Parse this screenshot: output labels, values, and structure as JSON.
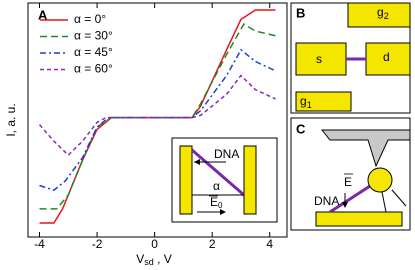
{
  "chart_data": {
    "type": "line",
    "panel_label": "A",
    "x_label": {
      "main": "V",
      "sub": "sd",
      "unit": " , V"
    },
    "y_label": "I, a. u.",
    "xlim": [
      -4.4,
      4.6
    ],
    "ylim": [
      0,
      1
    ],
    "xticks": [
      -4,
      -2,
      0,
      2,
      4
    ],
    "legend": "upper left",
    "series": [
      {
        "name": "α =   0°",
        "color": "#e8141c",
        "dash": "",
        "x": [
          -4.0,
          -3.5,
          -3.2,
          -2.5,
          -2.0,
          -1.5,
          1.3,
          1.6,
          2.5,
          3.0,
          3.5,
          4.2
        ],
        "values": [
          0.06,
          0.06,
          0.12,
          0.33,
          0.46,
          0.51,
          0.51,
          0.56,
          0.8,
          0.93,
          0.97,
          0.97
        ]
      },
      {
        "name": "α = 30°",
        "color": "#1a8a2a",
        "dash": "7 4",
        "x": [
          -4.0,
          -3.4,
          -3.0,
          -2.5,
          -2.0,
          -1.5,
          1.3,
          1.6,
          2.5,
          3.1,
          3.5,
          4.2
        ],
        "values": [
          0.12,
          0.12,
          0.18,
          0.33,
          0.47,
          0.51,
          0.51,
          0.57,
          0.78,
          0.91,
          0.88,
          0.86
        ]
      },
      {
        "name": "α = 45°",
        "color": "#1f3fd0",
        "dash": "6 3 2 3",
        "x": [
          -4.0,
          -3.5,
          -3.1,
          -2.5,
          -2.0,
          -1.6,
          1.3,
          1.6,
          2.5,
          3.0,
          3.5,
          4.2
        ],
        "values": [
          0.22,
          0.2,
          0.24,
          0.34,
          0.47,
          0.51,
          0.51,
          0.54,
          0.69,
          0.8,
          0.75,
          0.71
        ]
      },
      {
        "name": "α = 60°",
        "color": "#8a2ab8",
        "dash": "4 3",
        "x": [
          -4.0,
          -3.5,
          -3.0,
          -2.5,
          -2.0,
          -1.7,
          1.3,
          1.6,
          2.5,
          3.0,
          3.5,
          4.2
        ],
        "values": [
          0.48,
          0.41,
          0.35,
          0.41,
          0.49,
          0.51,
          0.51,
          0.52,
          0.61,
          0.69,
          0.63,
          0.59
        ]
      }
    ]
  },
  "inset": {
    "dna": "DNA",
    "alpha": "α",
    "field": "E",
    "field_sub": "0"
  },
  "panel_b": {
    "label": "B",
    "source": "s",
    "drain": "d",
    "gate1": {
      "main": "g",
      "sub": "1"
    },
    "gate2": {
      "main": "g",
      "sub": "2"
    }
  },
  "panel_c": {
    "label": "C",
    "field": "E",
    "dna": "DNA"
  }
}
